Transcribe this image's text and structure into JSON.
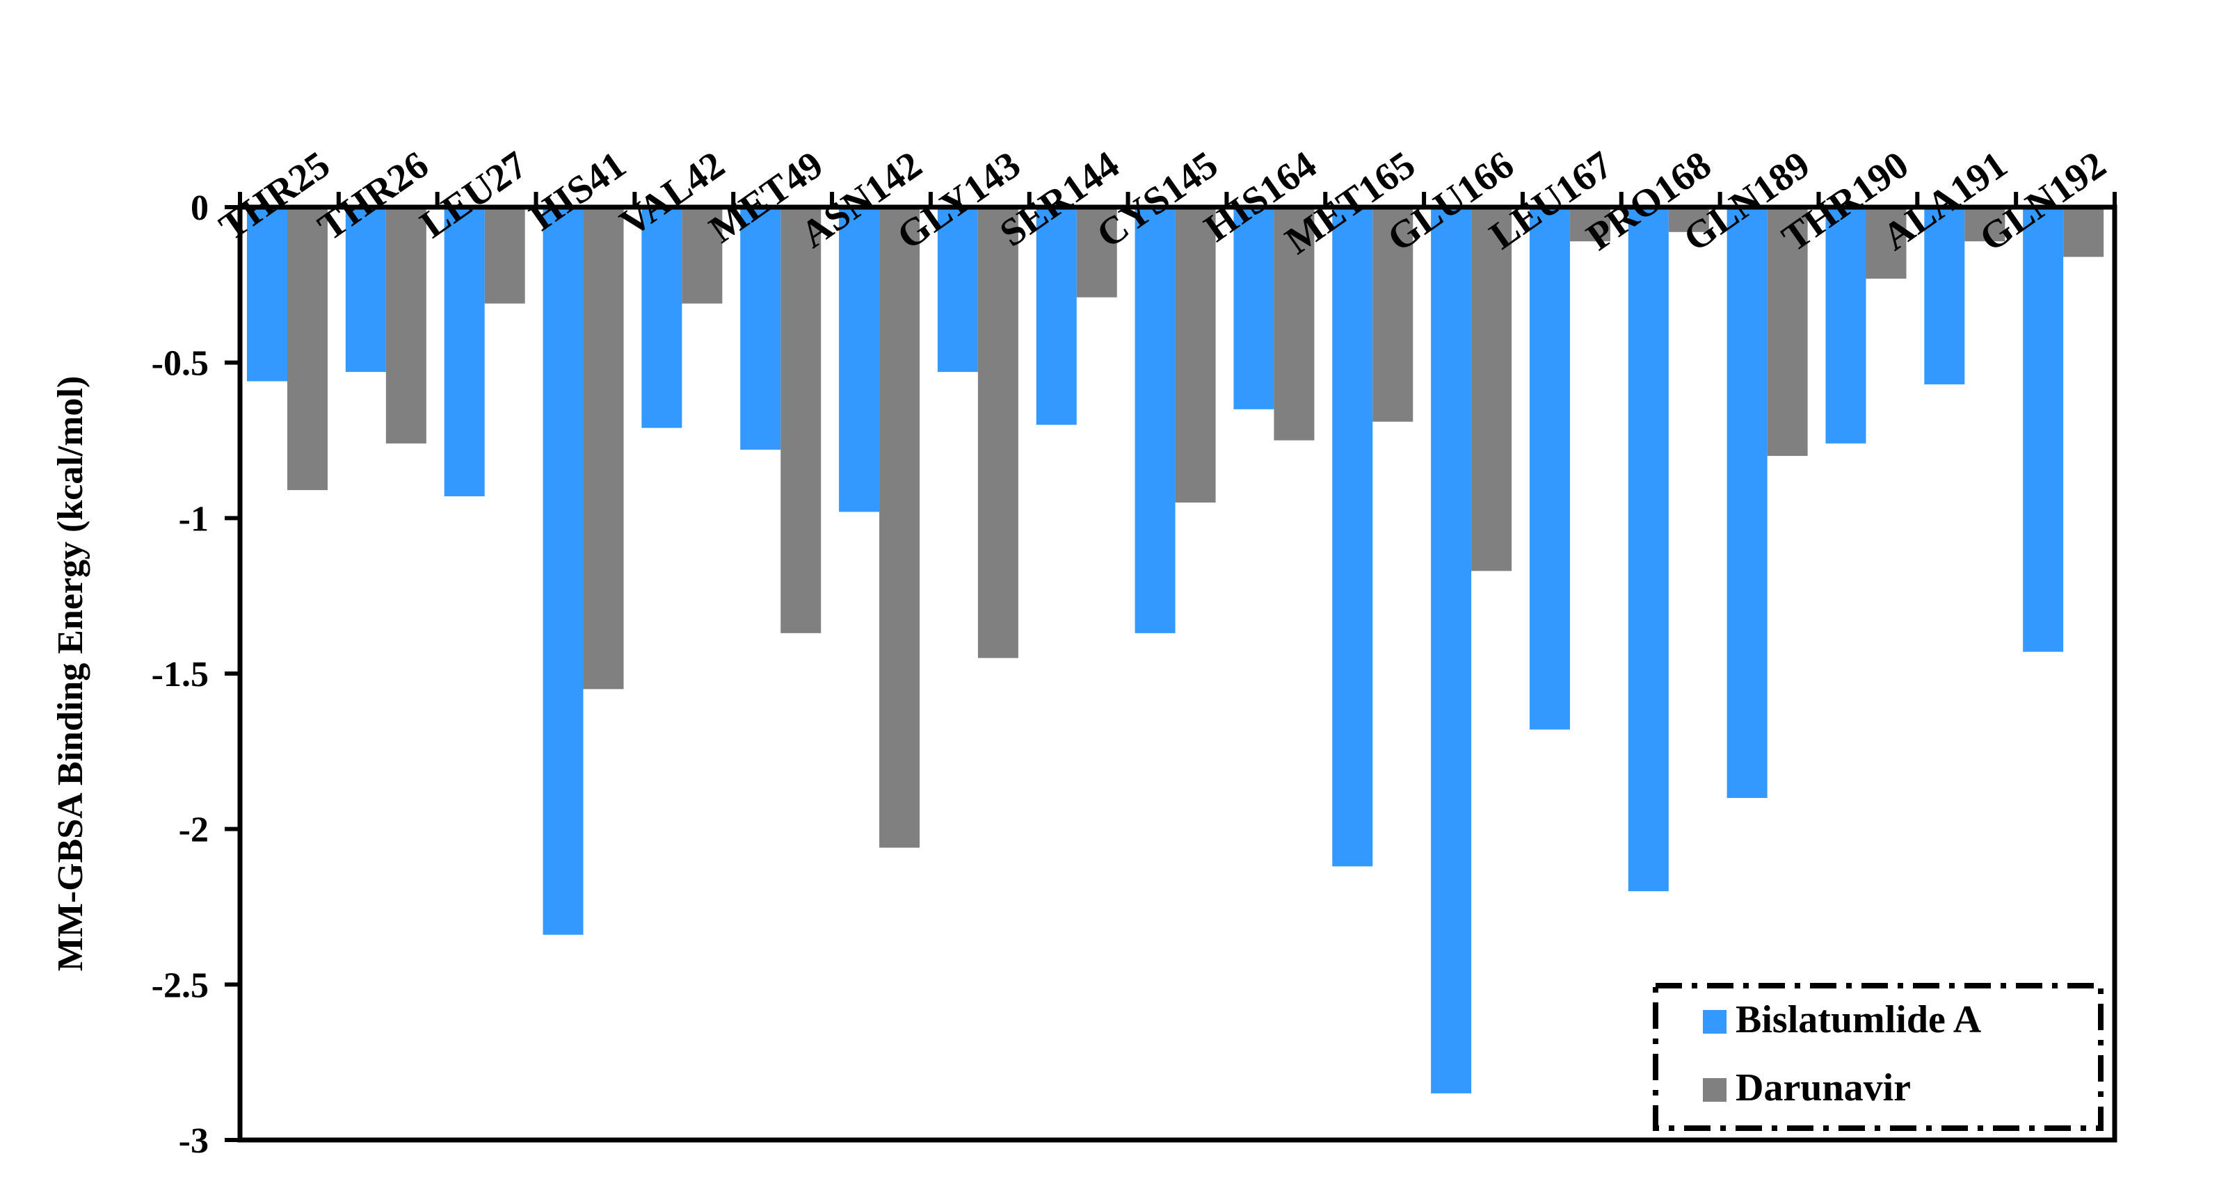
{
  "chart_data": {
    "type": "bar",
    "title": "",
    "xlabel": "",
    "ylabel": "MM-GBSA Binding Energy (kcal/mol)",
    "ylim": [
      -3,
      0
    ],
    "yticks": [
      0,
      -0.5,
      -1,
      -1.5,
      -2,
      -2.5,
      -3
    ],
    "ytick_labels": [
      "0",
      "-0.5",
      "-1",
      "-1.5",
      "-2",
      "-2.5",
      "-3"
    ],
    "x_axis_position": "top",
    "grid": false,
    "legend_position": "bottom-right",
    "categories": [
      "THR25",
      "THR26",
      "LEU27",
      "HIS41",
      "VAL42",
      "MET49",
      "ASN142",
      "GLY143",
      "SER144",
      "CYS145",
      "HIS164",
      "MET165",
      "GLU166",
      "LEU167",
      "PRO168",
      "GLN189",
      "THR190",
      "ALA191",
      "GLN192"
    ],
    "series": [
      {
        "name": "Bislatumlide A",
        "color": "#3399ff",
        "values": [
          -0.56,
          -0.53,
          -0.93,
          -2.34,
          -0.71,
          -0.78,
          -0.98,
          -0.53,
          -0.7,
          -1.37,
          -0.65,
          -2.12,
          -2.85,
          -1.68,
          -2.2,
          -1.9,
          -0.76,
          -0.57,
          -1.43
        ]
      },
      {
        "name": "Darunavir",
        "color": "#808080",
        "values": [
          -0.91,
          -0.76,
          -0.31,
          -1.55,
          -0.31,
          -1.37,
          -2.06,
          -1.45,
          -0.29,
          -0.95,
          -0.75,
          -0.69,
          -1.17,
          -0.11,
          -0.08,
          -0.8,
          -0.23,
          -0.11,
          -0.16
        ]
      }
    ]
  }
}
